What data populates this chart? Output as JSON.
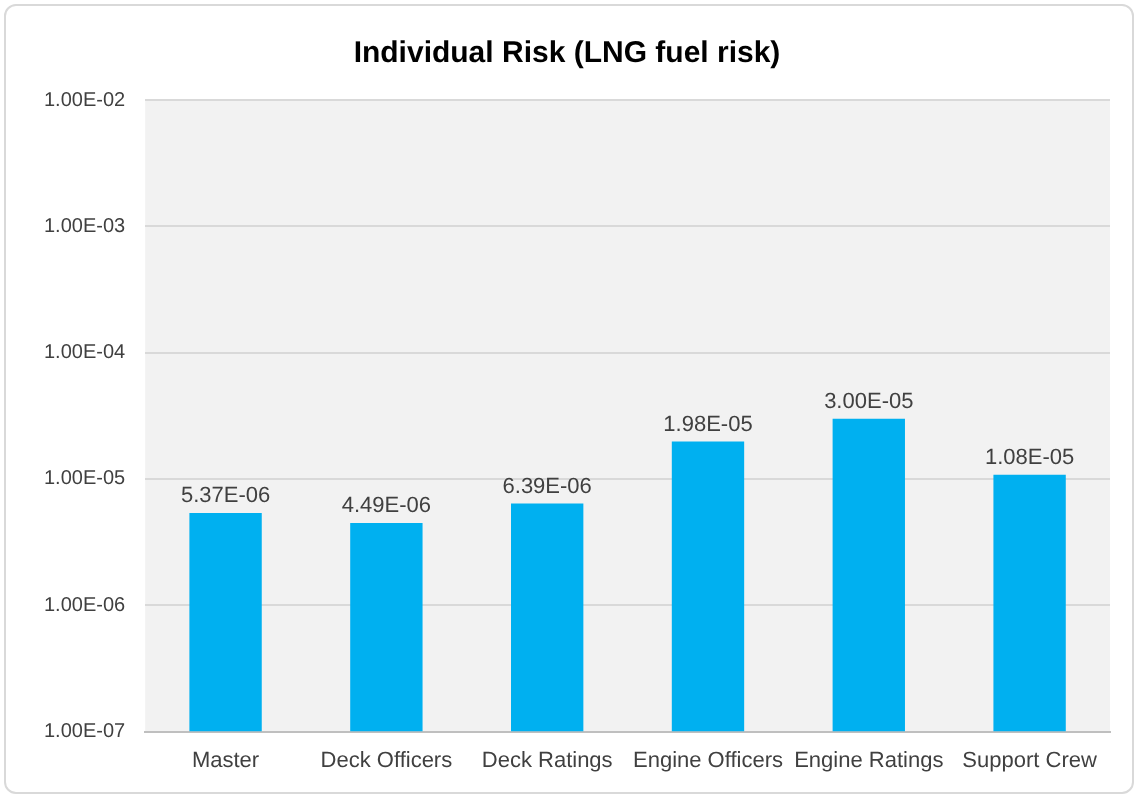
{
  "chart_data": {
    "type": "bar",
    "title": "Individual Risk (LNG fuel risk)",
    "categories": [
      "Master",
      "Deck Officers",
      "Deck Ratings",
      "Engine Officers",
      "Engine Ratings",
      "Support Crew"
    ],
    "values": [
      5.37e-06,
      4.49e-06,
      6.39e-06,
      1.98e-05,
      3e-05,
      1.08e-05
    ],
    "value_labels": [
      "5.37E-06",
      "4.49E-06",
      "6.39E-06",
      "1.98E-05",
      "3.00E-05",
      "1.08E-05"
    ],
    "color": "#00b0f0",
    "log": "y",
    "ylim": [
      1e-07,
      0.01
    ],
    "yticks": [
      {
        "value": 1e-07,
        "label": "1.00E-07"
      },
      {
        "value": 1e-06,
        "label": "1.00E-06"
      },
      {
        "value": 1e-05,
        "label": "1.00E-05"
      },
      {
        "value": 0.0001,
        "label": "1.00E-04"
      },
      {
        "value": 0.001,
        "label": "1.00E-03"
      },
      {
        "value": 0.01,
        "label": "1.00E-02"
      }
    ],
    "grid": "y"
  }
}
